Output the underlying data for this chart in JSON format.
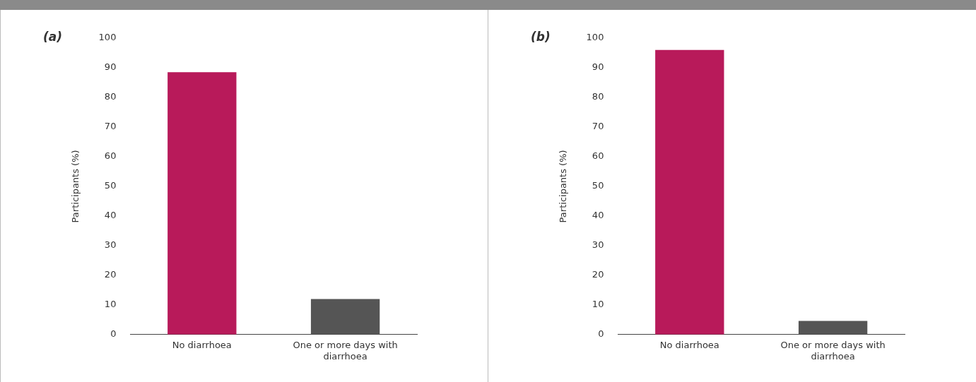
{
  "chart_data": [
    {
      "type": "bar",
      "title": "(a)",
      "ylabel": "Participants (%)",
      "categories": [
        "No diarrhoea",
        "One or more days with diarrhoea"
      ],
      "values": [
        88.5,
        12
      ],
      "colors": [
        "#b81a5a",
        "#555555"
      ],
      "ylim": [
        0,
        100
      ],
      "yticks": [
        0,
        10,
        20,
        30,
        40,
        50,
        60,
        70,
        80,
        90,
        100
      ]
    },
    {
      "type": "bar",
      "title": "(b)",
      "ylabel": "Participants (%)",
      "categories": [
        "No diarrhoea",
        "One or more days with diarrhoea"
      ],
      "values": [
        96,
        4.6
      ],
      "colors": [
        "#b81a5a",
        "#555555"
      ],
      "ylim": [
        0,
        100
      ],
      "yticks": [
        0,
        10,
        20,
        30,
        40,
        50,
        60,
        70,
        80,
        90,
        100
      ]
    }
  ]
}
